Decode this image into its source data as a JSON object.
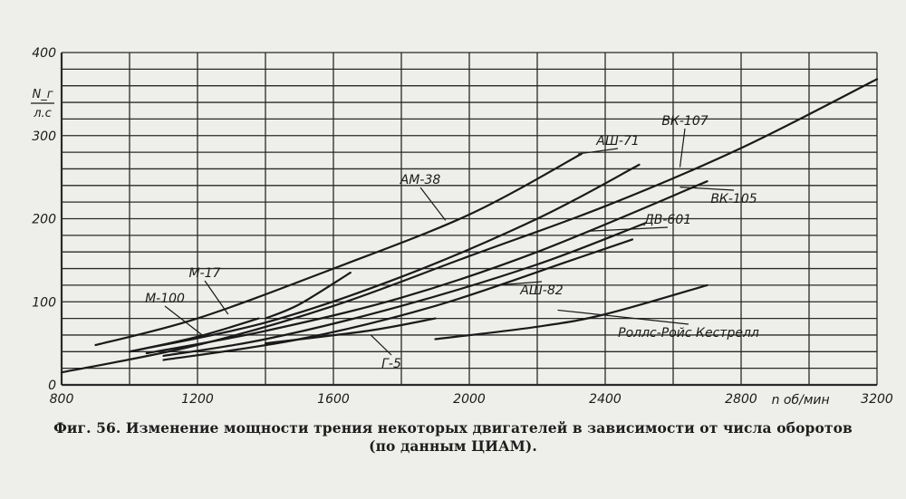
{
  "chart_data": {
    "type": "line",
    "title": "",
    "xlabel": "n об/мин",
    "ylabel_numerator": "N_г",
    "ylabel_denominator": "л.с",
    "xlim": [
      800,
      3200
    ],
    "ylim": [
      0,
      400
    ],
    "x_ticks": [
      {
        "value": 800,
        "label": "800"
      },
      {
        "value": 1200,
        "label": "1200"
      },
      {
        "value": 1600,
        "label": "1600"
      },
      {
        "value": 2000,
        "label": "2000"
      },
      {
        "value": 2400,
        "label": "2400"
      },
      {
        "value": 2800,
        "label": "2800"
      },
      {
        "value": 3200,
        "label": "3200"
      }
    ],
    "y_ticks": [
      {
        "value": 0,
        "label": "0"
      },
      {
        "value": 100,
        "label": "100"
      },
      {
        "value": 200,
        "label": "200"
      },
      {
        "value": 300,
        "label": "300"
      },
      {
        "value": 400,
        "label": "400"
      }
    ],
    "grid": true,
    "series": [
      {
        "name": "ВК-107",
        "x": [
          800,
          1200,
          1600,
          2000,
          2400,
          2800,
          3200
        ],
        "y": [
          15,
          48,
          95,
          155,
          215,
          285,
          368
        ]
      },
      {
        "name": "АМ-38",
        "x": [
          900,
          1200,
          1600,
          2000,
          2330
        ],
        "y": [
          48,
          80,
          140,
          205,
          278
        ]
      },
      {
        "name": "АШ-71",
        "x": [
          1000,
          1400,
          1800,
          2200,
          2500
        ],
        "y": [
          40,
          75,
          130,
          200,
          265
        ]
      },
      {
        "name": "ВК-105",
        "x": [
          1050,
          1400,
          1800,
          2200,
          2700
        ],
        "y": [
          38,
          65,
          105,
          160,
          245
        ]
      },
      {
        "name": "ДВ-601",
        "x": [
          1100,
          1400,
          1800,
          2200,
          2520
        ],
        "y": [
          35,
          55,
          95,
          145,
          195
        ]
      },
      {
        "name": "АШ-82",
        "x": [
          1100,
          1500,
          1900,
          2300,
          2480
        ],
        "y": [
          30,
          55,
          95,
          150,
          175
        ]
      },
      {
        "name": "М-17",
        "x": [
          1400,
          1500,
          1650
        ],
        "y": [
          80,
          97,
          135
        ]
      },
      {
        "name": "М-100",
        "x": [
          1000,
          1200,
          1380
        ],
        "y": [
          40,
          58,
          80
        ]
      },
      {
        "name": "Роллс-Ройс Кестрелл",
        "x": [
          1900,
          2200,
          2400,
          2700
        ],
        "y": [
          55,
          70,
          85,
          120
        ]
      },
      {
        "name": "Г-5",
        "x": [
          1400,
          1700,
          1900
        ],
        "y": [
          50,
          65,
          80
        ]
      }
    ]
  },
  "caption": {
    "line1": "Фиг. 56. Изменение мощности трения некоторых двигателей в зависимости от числа оборотов",
    "line2": "(по данным ЦИАМ)."
  },
  "style": {
    "ink": "#1a1a1a",
    "grid": "#2a2a2a",
    "paper": "#eeeeea"
  }
}
